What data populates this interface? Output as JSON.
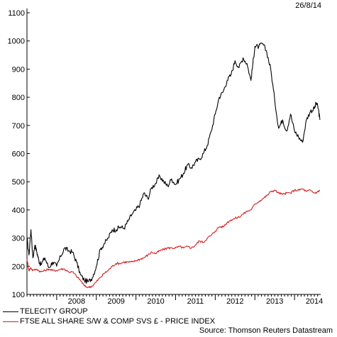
{
  "date_stamp": "26/8/14",
  "source": "Source: Thomson Reuters Datastream",
  "colors": {
    "telecity": "#000000",
    "ftse": "#d62020"
  },
  "chart_data": {
    "type": "line",
    "xlabel": "",
    "ylabel": "",
    "xlim": [
      2007.25,
      2014.66
    ],
    "ylim": [
      100,
      1100
    ],
    "y_ticks": [
      100,
      200,
      300,
      400,
      500,
      600,
      700,
      800,
      900,
      1000,
      1100
    ],
    "x_ticks": [
      "2008",
      "2009",
      "2010",
      "2011",
      "2012",
      "2013",
      "2014"
    ],
    "grid": false,
    "legend_position": "bottom-left",
    "series": [
      {
        "name": "TELECITY GROUP",
        "color": "#000000",
        "x": [
          2007.25,
          2007.3,
          2007.35,
          2007.4,
          2007.45,
          2007.5,
          2007.55,
          2007.6,
          2007.7,
          2007.8,
          2007.9,
          2008.0,
          2008.1,
          2008.2,
          2008.3,
          2008.4,
          2008.5,
          2008.6,
          2008.7,
          2008.8,
          2008.9,
          2009.0,
          2009.1,
          2009.2,
          2009.3,
          2009.4,
          2009.5,
          2009.6,
          2009.7,
          2009.8,
          2009.9,
          2010.0,
          2010.1,
          2010.2,
          2010.3,
          2010.4,
          2010.5,
          2010.6,
          2010.7,
          2010.8,
          2010.9,
          2011.0,
          2011.1,
          2011.2,
          2011.3,
          2011.4,
          2011.5,
          2011.6,
          2011.7,
          2011.8,
          2011.9,
          2012.0,
          2012.1,
          2012.2,
          2012.3,
          2012.4,
          2012.5,
          2012.6,
          2012.7,
          2012.8,
          2012.9,
          2012.95,
          2013.0,
          2013.1,
          2013.2,
          2013.3,
          2013.4,
          2013.5,
          2013.6,
          2013.7,
          2013.8,
          2013.9,
          2014.0,
          2014.1,
          2014.2,
          2014.3,
          2014.4,
          2014.5,
          2014.55,
          2014.6,
          2014.64
        ],
        "values": [
          300,
          240,
          330,
          230,
          275,
          250,
          220,
          205,
          230,
          195,
          215,
          200,
          235,
          265,
          255,
          250,
          215,
          170,
          150,
          145,
          160,
          200,
          260,
          280,
          300,
          330,
          330,
          340,
          335,
          360,
          385,
          400,
          420,
          460,
          440,
          480,
          495,
          520,
          500,
          485,
          510,
          490,
          510,
          530,
          560,
          550,
          570,
          580,
          600,
          630,
          680,
          740,
          800,
          820,
          860,
          880,
          930,
          905,
          940,
          920,
          860,
          920,
          980,
          980,
          990,
          960,
          900,
          790,
          690,
          720,
          680,
          740,
          680,
          660,
          640,
          720,
          750,
          760,
          780,
          760,
          720
        ]
      },
      {
        "name": "FTSE ALL SHARE S/W & COMP SVS £ - PRICE INDEX",
        "color": "#d62020",
        "x": [
          2007.25,
          2007.3,
          2007.35,
          2007.4,
          2007.5,
          2007.6,
          2007.7,
          2007.8,
          2007.9,
          2008.0,
          2008.1,
          2008.2,
          2008.3,
          2008.4,
          2008.5,
          2008.6,
          2008.7,
          2008.8,
          2008.9,
          2009.0,
          2009.1,
          2009.2,
          2009.3,
          2009.4,
          2009.5,
          2009.6,
          2009.7,
          2009.8,
          2009.9,
          2010.0,
          2010.1,
          2010.2,
          2010.3,
          2010.4,
          2010.5,
          2010.6,
          2010.7,
          2010.8,
          2010.9,
          2011.0,
          2011.1,
          2011.2,
          2011.3,
          2011.4,
          2011.5,
          2011.6,
          2011.7,
          2011.8,
          2011.9,
          2012.0,
          2012.1,
          2012.2,
          2012.3,
          2012.4,
          2012.5,
          2012.6,
          2012.7,
          2012.8,
          2012.9,
          2013.0,
          2013.1,
          2013.2,
          2013.3,
          2013.4,
          2013.5,
          2013.6,
          2013.7,
          2013.8,
          2013.9,
          2014.0,
          2014.1,
          2014.2,
          2014.3,
          2014.4,
          2014.5,
          2014.6,
          2014.64
        ],
        "values": [
          225,
          185,
          195,
          185,
          190,
          180,
          185,
          190,
          185,
          185,
          190,
          190,
          180,
          180,
          165,
          150,
          130,
          125,
          130,
          145,
          160,
          175,
          185,
          200,
          210,
          210,
          215,
          215,
          215,
          220,
          225,
          230,
          240,
          250,
          245,
          255,
          260,
          265,
          265,
          265,
          270,
          265,
          270,
          265,
          275,
          290,
          285,
          300,
          310,
          325,
          340,
          340,
          355,
          365,
          370,
          375,
          385,
          395,
          400,
          420,
          430,
          440,
          450,
          465,
          470,
          460,
          455,
          460,
          460,
          470,
          470,
          475,
          465,
          470,
          460,
          465,
          470
        ]
      }
    ]
  }
}
